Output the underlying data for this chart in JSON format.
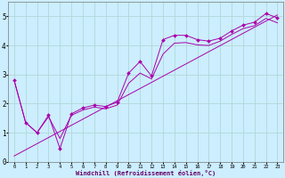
{
  "xlabel": "Windchill (Refroidissement éolien,°C)",
  "background_color": "#cceeff",
  "grid_color": "#b0d8d8",
  "line_color": "#aa00aa",
  "xlim": [
    -0.5,
    23.5
  ],
  "ylim": [
    0,
    5.5
  ],
  "xticks": [
    0,
    1,
    2,
    3,
    4,
    5,
    6,
    7,
    8,
    9,
    10,
    11,
    12,
    13,
    14,
    15,
    16,
    17,
    18,
    19,
    20,
    21,
    22,
    23
  ],
  "yticks": [
    0,
    1,
    2,
    3,
    4,
    5
  ],
  "line1_x": [
    0,
    1,
    2,
    3,
    4,
    5,
    6,
    7,
    8,
    9,
    10,
    11,
    12,
    13,
    14,
    15,
    16,
    17,
    18,
    19,
    20,
    21,
    22,
    23
  ],
  "line1_y": [
    2.8,
    1.35,
    1.0,
    1.6,
    0.45,
    1.65,
    1.85,
    1.95,
    1.9,
    2.05,
    3.05,
    3.45,
    2.95,
    4.2,
    4.35,
    4.35,
    4.2,
    4.15,
    4.25,
    4.5,
    4.7,
    4.8,
    5.1,
    4.95
  ],
  "line2_x": [
    0,
    1,
    2,
    3,
    4,
    5,
    6,
    7,
    8,
    9,
    10,
    11,
    12,
    13,
    14,
    15,
    16,
    17,
    18,
    19,
    20,
    21,
    22,
    23
  ],
  "line2_y": [
    2.8,
    1.35,
    1.0,
    1.55,
    0.8,
    1.6,
    1.78,
    1.88,
    1.82,
    1.95,
    2.7,
    3.05,
    2.85,
    3.7,
    4.08,
    4.1,
    4.02,
    4.0,
    4.15,
    4.38,
    4.58,
    4.68,
    4.93,
    4.78
  ],
  "line3_x": [
    0,
    23
  ],
  "line3_y": [
    0.2,
    5.05
  ]
}
